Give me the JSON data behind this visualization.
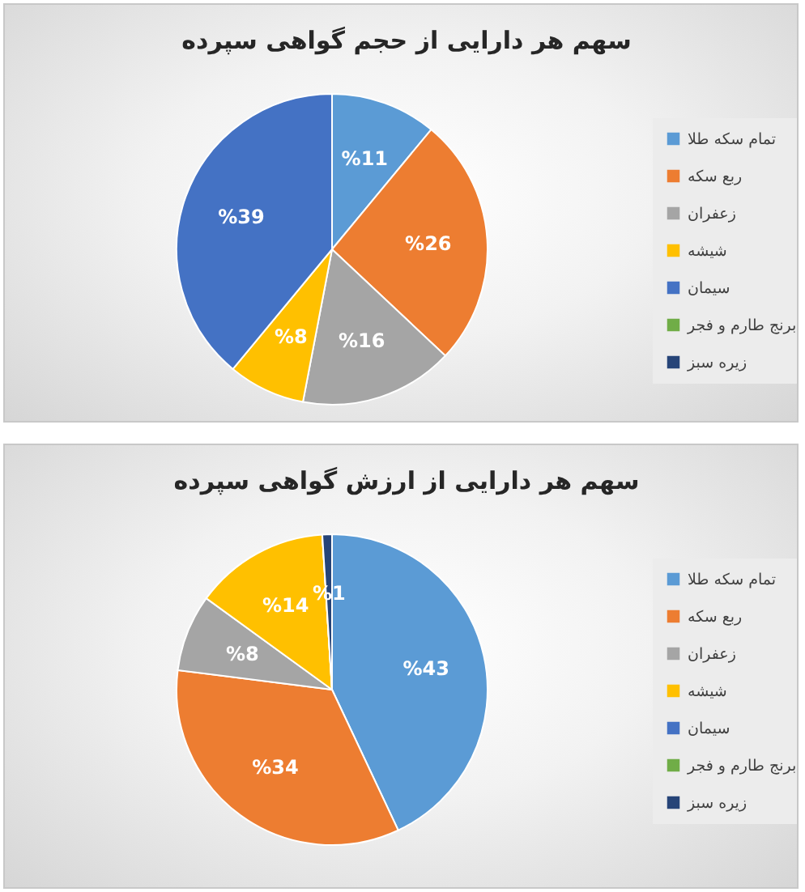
{
  "chart_data": [
    {
      "type": "pie",
      "title": "سهم هر دارایی از حجم گواهی سپرده",
      "categories": [
        "تمام سکه طلا",
        "ربع سکه",
        "زعفران",
        "شیشه",
        "سیمان",
        "برنج طارم و فجر",
        "زیره سبز"
      ],
      "values": [
        11,
        26,
        16,
        8,
        39,
        0,
        0
      ],
      "colors": [
        "#5b9bd5",
        "#ed7d31",
        "#a5a5a5",
        "#ffc000",
        "#4472c4",
        "#70ad47",
        "#264478"
      ],
      "value_labels": [
        "%11",
        "%26",
        "%16",
        "%8",
        "%39",
        null,
        null
      ],
      "legend": "right"
    },
    {
      "type": "pie",
      "title": "سهم هر دارایی از ارزش گواهی سپرده",
      "categories": [
        "تمام سکه طلا",
        "ربع سکه",
        "زعفران",
        "شیشه",
        "سیمان",
        "برنج طارم و فجر",
        "زیره سبز"
      ],
      "values": [
        43,
        34,
        8,
        14,
        0,
        0,
        1
      ],
      "colors": [
        "#5b9bd5",
        "#ed7d31",
        "#a5a5a5",
        "#ffc000",
        "#4472c4",
        "#70ad47",
        "#264478"
      ],
      "value_labels": [
        "%43",
        "%34",
        "%8",
        "%14",
        null,
        null,
        "%1"
      ],
      "legend": "right"
    }
  ]
}
